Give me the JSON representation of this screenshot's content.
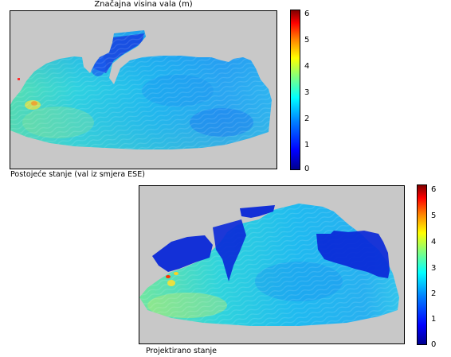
{
  "title": "Značajna visina vala (m)",
  "caption_top": "Postojeće stanje (val iz smjera ESE)",
  "caption_bottom": "Projektirano stanje",
  "chart_data": [
    {
      "type": "heatmap",
      "title": "Značajna visina vala (m)",
      "caption": "Postojeće stanje (val iz smjera ESE)",
      "colorbar": {
        "min": 0,
        "max": 6,
        "ticks": [
          "0",
          "1",
          "2",
          "3",
          "4",
          "5",
          "6"
        ]
      },
      "value_range_observed": [
        0.8,
        3.8
      ]
    },
    {
      "type": "heatmap",
      "caption": "Projektirano stanje",
      "colorbar": {
        "min": 0,
        "max": 6,
        "ticks": [
          "0",
          "1",
          "2",
          "3",
          "4",
          "5",
          "6"
        ]
      },
      "value_range_observed": [
        0.2,
        6
      ]
    }
  ],
  "colors": {
    "land_background": "#c8c8c8"
  }
}
